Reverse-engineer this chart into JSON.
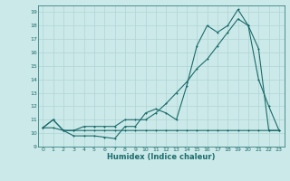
{
  "xlabel": "Humidex (Indice chaleur)",
  "bg_color": "#cce9e9",
  "grid_color": "#afd4d4",
  "line_color": "#1a6b6b",
  "xlim": [
    -0.5,
    23.5
  ],
  "ylim": [
    9.0,
    19.5
  ],
  "yticks": [
    9,
    10,
    11,
    12,
    13,
    14,
    15,
    16,
    17,
    18,
    19
  ],
  "xticks": [
    0,
    1,
    2,
    3,
    4,
    5,
    6,
    7,
    8,
    9,
    10,
    11,
    12,
    13,
    14,
    15,
    16,
    17,
    18,
    19,
    20,
    21,
    22,
    23
  ],
  "line1_x": [
    0,
    1,
    2,
    3,
    4,
    5,
    6,
    7,
    8,
    9,
    10,
    11,
    12,
    13,
    14,
    15,
    16,
    17,
    18,
    19,
    20,
    21,
    22,
    23
  ],
  "line1_y": [
    10.4,
    11.0,
    10.2,
    9.8,
    9.8,
    9.8,
    9.7,
    9.6,
    10.5,
    10.5,
    11.5,
    11.8,
    11.5,
    11.0,
    13.5,
    16.5,
    18.0,
    17.5,
    18.0,
    19.2,
    18.0,
    14.0,
    12.0,
    10.2
  ],
  "line2_x": [
    0,
    1,
    2,
    3,
    4,
    5,
    6,
    7,
    8,
    9,
    10,
    11,
    12,
    13,
    14,
    15,
    16,
    17,
    18,
    19,
    20,
    21,
    22,
    23
  ],
  "line2_y": [
    10.4,
    11.0,
    10.2,
    10.2,
    10.5,
    10.5,
    10.5,
    10.5,
    11.0,
    11.0,
    11.0,
    11.5,
    12.2,
    13.0,
    13.8,
    14.8,
    15.5,
    16.5,
    17.5,
    18.5,
    18.0,
    16.3,
    10.2,
    10.2
  ],
  "line3_x": [
    0,
    1,
    2,
    3,
    4,
    5,
    6,
    7,
    8,
    9,
    10,
    11,
    12,
    13,
    14,
    15,
    16,
    17,
    18,
    19,
    20,
    21,
    22,
    23
  ],
  "line3_y": [
    10.4,
    10.4,
    10.2,
    10.2,
    10.2,
    10.2,
    10.2,
    10.2,
    10.2,
    10.2,
    10.2,
    10.2,
    10.2,
    10.2,
    10.2,
    10.2,
    10.2,
    10.2,
    10.2,
    10.2,
    10.2,
    10.2,
    10.2,
    10.2
  ]
}
